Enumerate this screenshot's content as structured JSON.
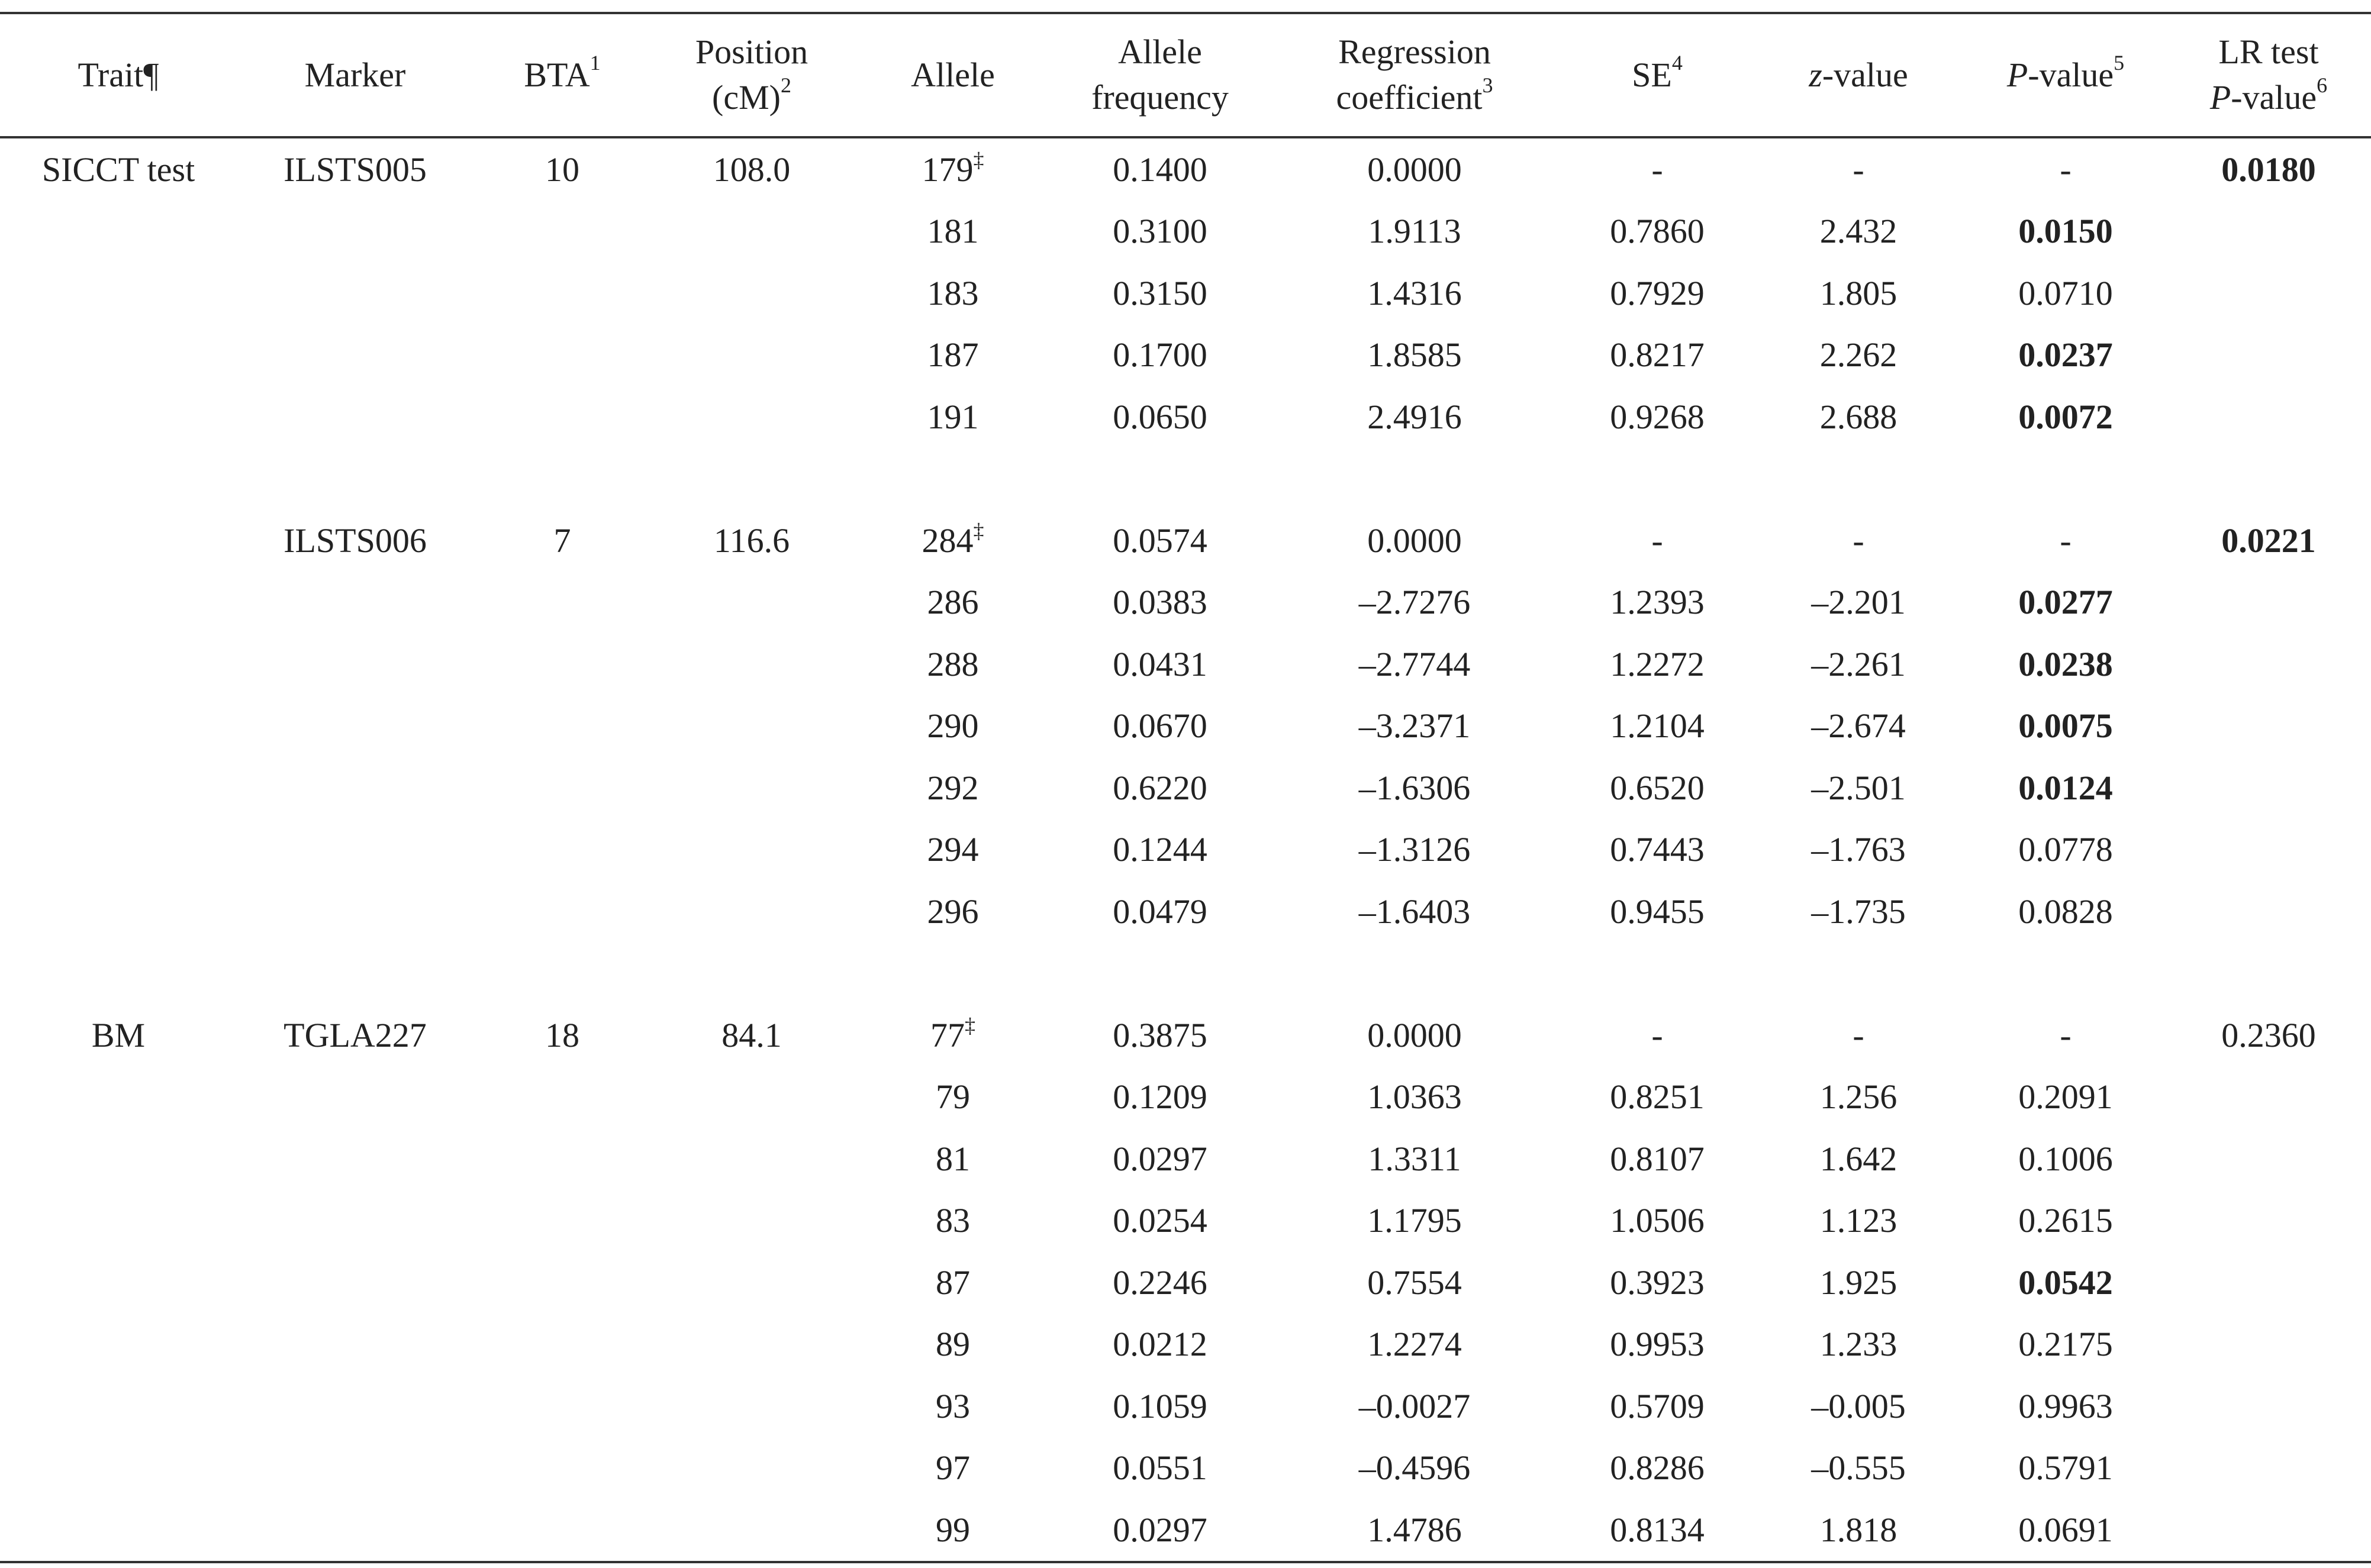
{
  "header": {
    "trait": "Trait¶",
    "marker": "Marker",
    "bta": "BTA",
    "bta_sup": "1",
    "position_line1": "Position",
    "position_line2": "(cM)",
    "position_sup": "2",
    "allele": "Allele",
    "freq_line1": "Allele",
    "freq_line2": "frequency",
    "reg_line1": "Regression",
    "reg_line2": "coefficient",
    "reg_sup": "3",
    "se": "SE",
    "se_sup": "4",
    "z_italic": "z",
    "z_rest": "-value",
    "p_italic": "P",
    "p_rest": "-value",
    "p_sup": "5",
    "lr_line1": "LR test",
    "lr_italic": "P",
    "lr_rest": "-value",
    "lr_sup": "6"
  },
  "rows": [
    {
      "trait": "SICCT test",
      "marker": "ILSTS005",
      "bta": "10",
      "position": "108.0",
      "allele": "179",
      "allele_mark": "‡",
      "freq": "0.1400",
      "reg": "0.0000",
      "se": "-",
      "z": "-",
      "p": "-",
      "lr": "0.0180",
      "p_bold": false,
      "lr_bold": true
    },
    {
      "allele": "181",
      "freq": "0.3100",
      "reg": "1.9113",
      "se": "0.7860",
      "z": "2.432",
      "p": "0.0150",
      "p_bold": true
    },
    {
      "allele": "183",
      "freq": "0.3150",
      "reg": "1.4316",
      "se": "0.7929",
      "z": "1.805",
      "p": "0.0710",
      "p_bold": false
    },
    {
      "allele": "187",
      "freq": "0.1700",
      "reg": "1.8585",
      "se": "0.8217",
      "z": "2.262",
      "p": "0.0237",
      "p_bold": true
    },
    {
      "allele": "191",
      "freq": "0.0650",
      "reg": "2.4916",
      "se": "0.9268",
      "z": "2.688",
      "p": "0.0072",
      "p_bold": true
    },
    {
      "spacer": true
    },
    {
      "marker": "ILSTS006",
      "bta": "7",
      "position": "116.6",
      "allele": "284",
      "allele_mark": "‡",
      "freq": "0.0574",
      "reg": "0.0000",
      "se": "-",
      "z": "-",
      "p": "-",
      "lr": "0.0221",
      "p_bold": false,
      "lr_bold": true
    },
    {
      "allele": "286",
      "freq": "0.0383",
      "reg": "–2.7276",
      "se": "1.2393",
      "z": "–2.201",
      "p": "0.0277",
      "p_bold": true
    },
    {
      "allele": "288",
      "freq": "0.0431",
      "reg": "–2.7744",
      "se": "1.2272",
      "z": "–2.261",
      "p": "0.0238",
      "p_bold": true
    },
    {
      "allele": "290",
      "freq": "0.0670",
      "reg": "–3.2371",
      "se": "1.2104",
      "z": "–2.674",
      "p": "0.0075",
      "p_bold": true
    },
    {
      "allele": "292",
      "freq": "0.6220",
      "reg": "–1.6306",
      "se": "0.6520",
      "z": "–2.501",
      "p": "0.0124",
      "p_bold": true
    },
    {
      "allele": "294",
      "freq": "0.1244",
      "reg": "–1.3126",
      "se": "0.7443",
      "z": "–1.763",
      "p": "0.0778",
      "p_bold": false
    },
    {
      "allele": "296",
      "freq": "0.0479",
      "reg": "–1.6403",
      "se": "0.9455",
      "z": "–1.735",
      "p": "0.0828",
      "p_bold": false
    },
    {
      "spacer": true
    },
    {
      "trait": "BM",
      "marker": "TGLA227",
      "bta": "18",
      "position": "84.1",
      "allele": "77",
      "allele_mark": "‡",
      "freq": "0.3875",
      "reg": "0.0000",
      "se": "-",
      "z": "-",
      "p": "-",
      "lr": "0.2360",
      "p_bold": false,
      "lr_bold": false
    },
    {
      "allele": "79",
      "freq": "0.1209",
      "reg": "1.0363",
      "se": "0.8251",
      "z": "1.256",
      "p": "0.2091",
      "p_bold": false
    },
    {
      "allele": "81",
      "freq": "0.0297",
      "reg": "1.3311",
      "se": "0.8107",
      "z": "1.642",
      "p": "0.1006",
      "p_bold": false
    },
    {
      "allele": "83",
      "freq": "0.0254",
      "reg": "1.1795",
      "se": "1.0506",
      "z": "1.123",
      "p": "0.2615",
      "p_bold": false
    },
    {
      "allele": "87",
      "freq": "0.2246",
      "reg": "0.7554",
      "se": "0.3923",
      "z": "1.925",
      "p": "0.0542",
      "p_bold": true
    },
    {
      "allele": "89",
      "freq": "0.0212",
      "reg": "1.2274",
      "se": "0.9953",
      "z": "1.233",
      "p": "0.2175",
      "p_bold": false
    },
    {
      "allele": "93",
      "freq": "0.1059",
      "reg": "–0.0027",
      "se": "0.5709",
      "z": "–0.005",
      "p": "0.9963",
      "p_bold": false
    },
    {
      "allele": "97",
      "freq": "0.0551",
      "reg": "–0.4596",
      "se": "0.8286",
      "z": "–0.555",
      "p": "0.5791",
      "p_bold": false
    },
    {
      "allele": "99",
      "freq": "0.0297",
      "reg": "1.4786",
      "se": "0.8134",
      "z": "1.818",
      "p": "0.0691",
      "p_bold": false
    }
  ]
}
